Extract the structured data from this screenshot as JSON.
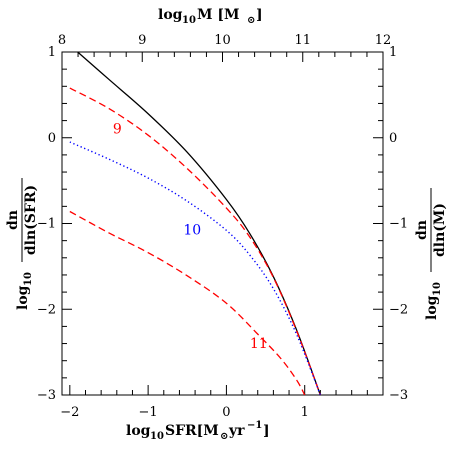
{
  "chart_data": {
    "type": "line",
    "xlabel_bottom": {
      "prefix": "log",
      "sub": "10",
      "main": "SFR[M",
      "sun": "⊙",
      "unit": "yr",
      "exp": "−1",
      "close": "]"
    },
    "xlabel_top": {
      "prefix": "log",
      "sub": "10",
      "main": "M [M",
      "sun": "⊙",
      "close": "]"
    },
    "ylabel_left": {
      "prefix": "log",
      "sub": "10",
      "num": "dn",
      "den": "dln(SFR)"
    },
    "ylabel_right": {
      "prefix": "log",
      "sub": "10",
      "num": "dn",
      "den": "dln(M)"
    },
    "xlim_bottom": [
      -2.1,
      2.0
    ],
    "xlim_top": [
      8.0,
      12.0
    ],
    "ylim": [
      -3,
      1
    ],
    "x_ticks_bottom": [
      -2,
      -1,
      0,
      1
    ],
    "x_tick_labels_bottom": [
      "−2",
      "−1",
      "0",
      "1"
    ],
    "x_ticks_top": [
      8,
      9,
      10,
      11,
      12
    ],
    "x_tick_labels_top": [
      "8",
      "9",
      "10",
      "11",
      "12"
    ],
    "y_ticks": [
      1,
      0,
      -1,
      -2,
      -3
    ],
    "y_tick_labels": [
      "1",
      "0",
      "−1",
      "−2",
      "−3"
    ],
    "series": [
      {
        "style": "solid",
        "color": "#000000",
        "x": [
          -1.9,
          -1.5,
          -1.0,
          -0.5,
          0.0,
          0.3,
          0.6,
          0.9,
          1.2
        ],
        "y": [
          1.0,
          0.68,
          0.28,
          -0.17,
          -0.72,
          -1.12,
          -1.62,
          -2.25,
          -3.0
        ]
      },
      {
        "style": "dashed",
        "color": "#ff0000",
        "label": "9",
        "x": [
          -2.0,
          -1.5,
          -1.0,
          -0.5,
          0.0,
          0.3,
          0.6,
          0.9,
          1.2
        ],
        "y": [
          0.58,
          0.34,
          0.03,
          -0.36,
          -0.82,
          -1.16,
          -1.63,
          -2.26,
          -3.0
        ]
      },
      {
        "style": "dotted",
        "color": "#0000ff",
        "label": "10",
        "x": [
          -2.0,
          -1.5,
          -1.0,
          -0.5,
          0.0,
          0.3,
          0.6,
          0.9,
          1.2
        ],
        "y": [
          -0.05,
          -0.25,
          -0.47,
          -0.74,
          -1.08,
          -1.37,
          -1.76,
          -2.3,
          -3.0
        ]
      },
      {
        "style": "dashed",
        "color": "#ff0000",
        "label": "11",
        "x": [
          -2.0,
          -1.5,
          -1.0,
          -0.5,
          0.0,
          0.4,
          0.7,
          0.9,
          1.0
        ],
        "y": [
          -0.86,
          -1.11,
          -1.34,
          -1.61,
          -1.93,
          -2.29,
          -2.58,
          -2.83,
          -3.0
        ]
      }
    ],
    "curve_labels": [
      {
        "text": "9",
        "color": "#ff0000",
        "x": -1.45,
        "y": 0.05
      },
      {
        "text": "10",
        "color": "#0000ff",
        "x": -0.55,
        "y": -1.13
      },
      {
        "text": "11",
        "color": "#ff0000",
        "x": 0.3,
        "y": -2.45
      }
    ]
  }
}
